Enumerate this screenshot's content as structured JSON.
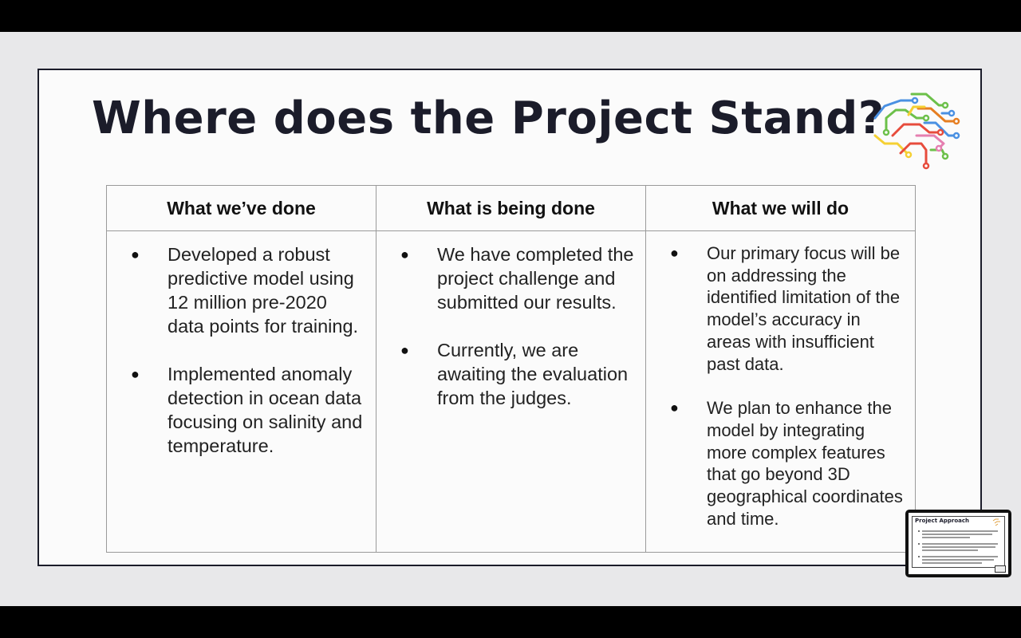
{
  "slide": {
    "title": "Where does the Project Stand?",
    "columns": [
      {
        "header": "What we’ve done",
        "bullets": [
          "Developed a robust predictive model using 12 million pre-2020 data points for training.",
          "Implemented anomaly detection in ocean data focusing on salinity and temperature."
        ]
      },
      {
        "header": "What is being done",
        "bullets": [
          "We have completed the project challenge and submitted our results.",
          "Currently, we are awaiting the evaluation from the judges."
        ]
      },
      {
        "header": "What we will do",
        "bullets": [
          "Our primary focus will be on addressing the identified limitation of the model’s accuracy in areas with insufficient past data.",
          "We plan to enhance the model by integrating more complex features that go beyond 3D geographical coordinates and time."
        ]
      }
    ],
    "bullet_glyph": "●"
  },
  "preview": {
    "title": "Project Approach"
  },
  "colors": {
    "title": "#1b1c2a",
    "logo": [
      "#4a90e2",
      "#f5d033",
      "#e74c3c",
      "#6cc04a",
      "#e67e22",
      "#e57fb0"
    ]
  }
}
